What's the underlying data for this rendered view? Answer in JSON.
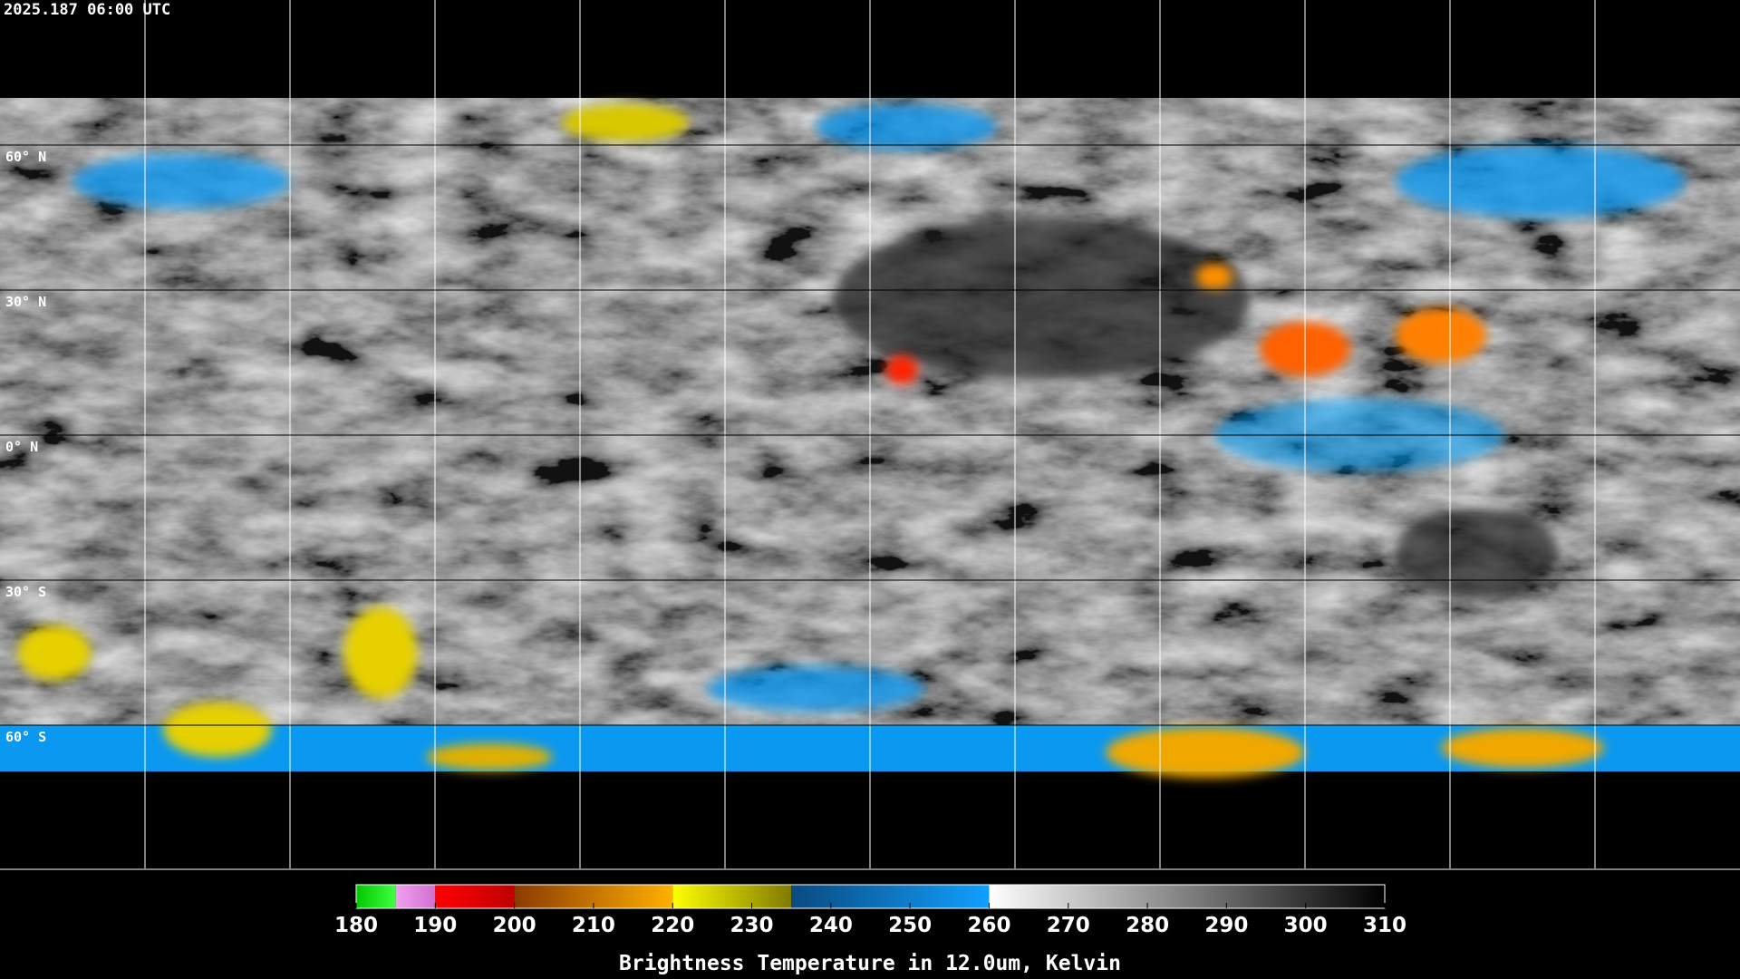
{
  "header": {
    "title": "2025.187 06:00 UTC"
  },
  "map": {
    "lat_labels": [
      "60° N",
      "30° N",
      "0° N",
      "30° S",
      "60° S"
    ]
  },
  "colorbar": {
    "label": "Brightness Temperature in 12.0um, Kelvin",
    "lim": [
      180,
      310
    ],
    "ticks": [
      180,
      190,
      200,
      210,
      220,
      230,
      240,
      250,
      260,
      270,
      280,
      290,
      300,
      310
    ],
    "segments": [
      {
        "from": 180,
        "to": 185,
        "colors": [
          "#00c800",
          "#40ff40"
        ]
      },
      {
        "from": 185,
        "to": 190,
        "colors": [
          "#f0a0f0",
          "#d070d0"
        ]
      },
      {
        "from": 190,
        "to": 200,
        "colors": [
          "#ff0000",
          "#c00000"
        ]
      },
      {
        "from": 200,
        "to": 220,
        "colors": [
          "#8a3a00",
          "#ffb000"
        ]
      },
      {
        "from": 220,
        "to": 235,
        "colors": [
          "#ffff00",
          "#807a00"
        ]
      },
      {
        "from": 235,
        "to": 260,
        "colors": [
          "#0a4a80",
          "#10a0ff"
        ]
      },
      {
        "from": 260,
        "to": 310,
        "colors": [
          "#ffffff",
          "#000000"
        ]
      }
    ]
  }
}
